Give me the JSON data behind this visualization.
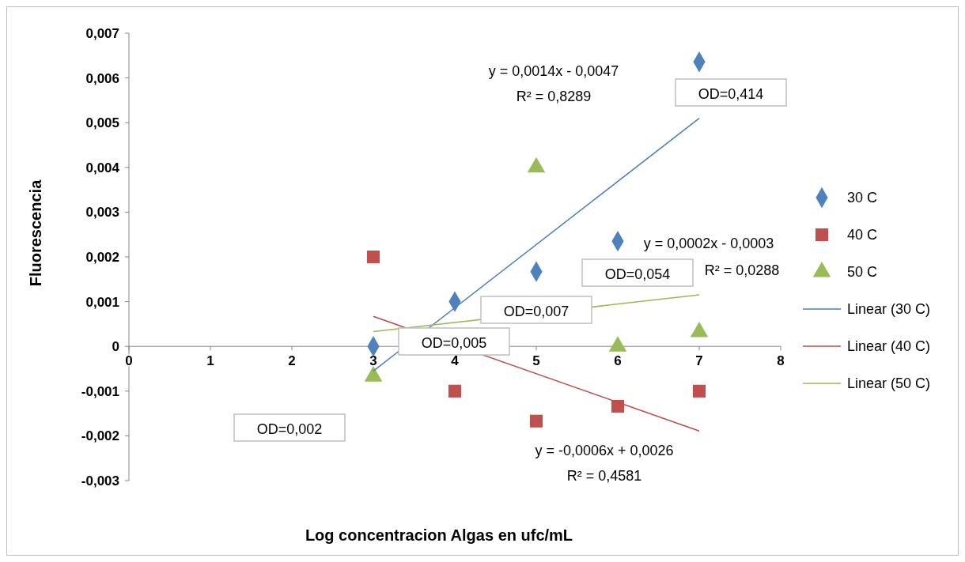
{
  "chart_data": {
    "type": "scatter",
    "xlabel": "Log concentracion Algas en ufc/mL",
    "ylabel": "Fluorescencia",
    "xlim": [
      0,
      8
    ],
    "xticks": [
      0,
      1,
      2,
      3,
      4,
      5,
      6,
      7,
      8
    ],
    "ylim": [
      -0.003,
      0.007
    ],
    "yticks": [
      {
        "value": -0.003,
        "label": "-0,003"
      },
      {
        "value": -0.002,
        "label": "-0,002"
      },
      {
        "value": -0.001,
        "label": "-0,001"
      },
      0,
      {
        "value": 0.001,
        "label": "0,001"
      },
      {
        "value": 0.002,
        "label": "0,002"
      },
      {
        "value": 0.003,
        "label": "0,003"
      },
      {
        "value": 0.004,
        "label": "0,004"
      },
      {
        "value": 0.005,
        "label": "0,005"
      },
      {
        "value": 0.006,
        "label": "0,006"
      },
      {
        "value": 0.007,
        "label": "0,007"
      }
    ],
    "legend": "right",
    "grid": false,
    "series": [
      {
        "name": "30 C",
        "type": "scatter",
        "marker": "diamond",
        "color": "#4f81bd",
        "x": [
          3,
          4,
          5,
          6,
          7
        ],
        "values": [
          0,
          0.001,
          0.00167,
          0.00235,
          0.00636
        ]
      },
      {
        "name": "40 C",
        "type": "scatter",
        "marker": "square",
        "color": "#c0504d",
        "x": [
          3,
          4,
          5,
          6,
          7
        ],
        "values": [
          0.002,
          -0.001,
          -0.00167,
          -0.00134,
          -0.001
        ]
      },
      {
        "name": "50 C",
        "type": "scatter",
        "marker": "triangle",
        "color": "#9bbb59",
        "x": [
          3,
          5,
          6,
          7
        ],
        "values": [
          -0.00067,
          0.004,
          0,
          0.00032
        ]
      },
      {
        "name": "Linear (30 C)",
        "type": "line",
        "marker": "none",
        "color": "#4a7ebb",
        "x": [
          3,
          7
        ],
        "values": [
          -0.00055,
          0.0051
        ]
      },
      {
        "name": "Linear (40 C)",
        "type": "line",
        "marker": "none",
        "color": "#be4b48",
        "x": [
          3,
          7
        ],
        "values": [
          0.00067,
          -0.00189
        ]
      },
      {
        "name": "Linear (50 C)",
        "type": "line",
        "marker": "none",
        "color": "#98b954",
        "x": [
          3,
          7
        ],
        "values": [
          0.00033,
          0.00115
        ]
      }
    ],
    "annotations": [
      "y = 0,0014x - 0,0047",
      "R² = 0,8289",
      "y = -0,0006x + 0,0026",
      "R² = 0,4581",
      "y = 0,0002x - 0,0003",
      "R² = 0,0288",
      "OD=0,414",
      "OD=0,054",
      "OD=0,007",
      "OD=0,005",
      "OD=0,002"
    ]
  }
}
